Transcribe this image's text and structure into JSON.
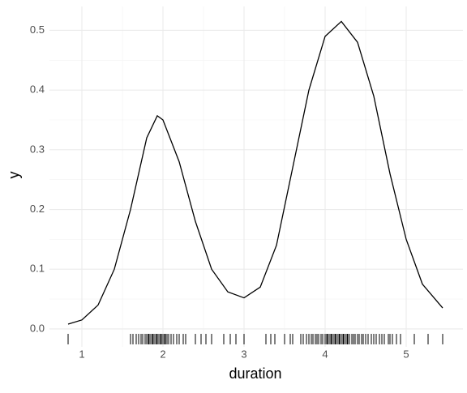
{
  "chart_data": {
    "type": "line",
    "x_label": "duration",
    "y_label": "y",
    "x": [
      0.83,
      1.0,
      1.2,
      1.4,
      1.6,
      1.8,
      1.93,
      2.0,
      2.2,
      2.4,
      2.6,
      2.8,
      3.0,
      3.2,
      3.4,
      3.6,
      3.8,
      4.0,
      4.2,
      4.4,
      4.6,
      4.8,
      5.0,
      5.2,
      5.45
    ],
    "values": [
      0.008,
      0.015,
      0.04,
      0.1,
      0.2,
      0.32,
      0.357,
      0.35,
      0.28,
      0.18,
      0.1,
      0.062,
      0.052,
      0.07,
      0.14,
      0.27,
      0.4,
      0.49,
      0.515,
      0.48,
      0.39,
      0.26,
      0.15,
      0.075,
      0.035
    ],
    "color": "#000000",
    "rug": [
      0.83,
      1.6,
      1.63,
      1.67,
      1.7,
      1.73,
      1.75,
      1.78,
      1.8,
      1.82,
      1.83,
      1.85,
      1.87,
      1.88,
      1.9,
      1.92,
      1.93,
      1.95,
      1.97,
      1.98,
      2.0,
      2.02,
      2.03,
      2.05,
      2.07,
      2.1,
      2.13,
      2.17,
      2.2,
      2.25,
      2.28,
      2.4,
      2.47,
      2.53,
      2.6,
      2.75,
      2.83,
      2.9,
      3.0,
      3.27,
      3.33,
      3.38,
      3.5,
      3.57,
      3.6,
      3.7,
      3.73,
      3.77,
      3.8,
      3.83,
      3.85,
      3.88,
      3.9,
      3.92,
      3.95,
      3.97,
      4.0,
      4.02,
      4.03,
      4.05,
      4.07,
      4.08,
      4.1,
      4.12,
      4.13,
      4.15,
      4.17,
      4.18,
      4.2,
      4.22,
      4.23,
      4.25,
      4.27,
      4.28,
      4.3,
      4.33,
      4.35,
      4.37,
      4.4,
      4.42,
      4.45,
      4.47,
      4.5,
      4.53,
      4.57,
      4.6,
      4.63,
      4.67,
      4.7,
      4.73,
      4.78,
      4.8,
      4.83,
      4.88,
      4.93,
      5.1,
      5.27,
      5.45
    ],
    "xlim": [
      0.6,
      5.7
    ],
    "ylim": [
      -0.03,
      0.54
    ],
    "xticks": [
      1,
      2,
      3,
      4,
      5
    ],
    "yticks": [
      {
        "value": 0,
        "label": "0.0"
      },
      {
        "value": 0.1,
        "label": "0.1"
      },
      {
        "value": 0.2,
        "label": "0.2"
      },
      {
        "value": 0.3,
        "label": "0.3"
      },
      {
        "value": 0.4,
        "label": "0.4"
      },
      {
        "value": 0.5,
        "label": "0.5"
      }
    ],
    "grid": true
  }
}
